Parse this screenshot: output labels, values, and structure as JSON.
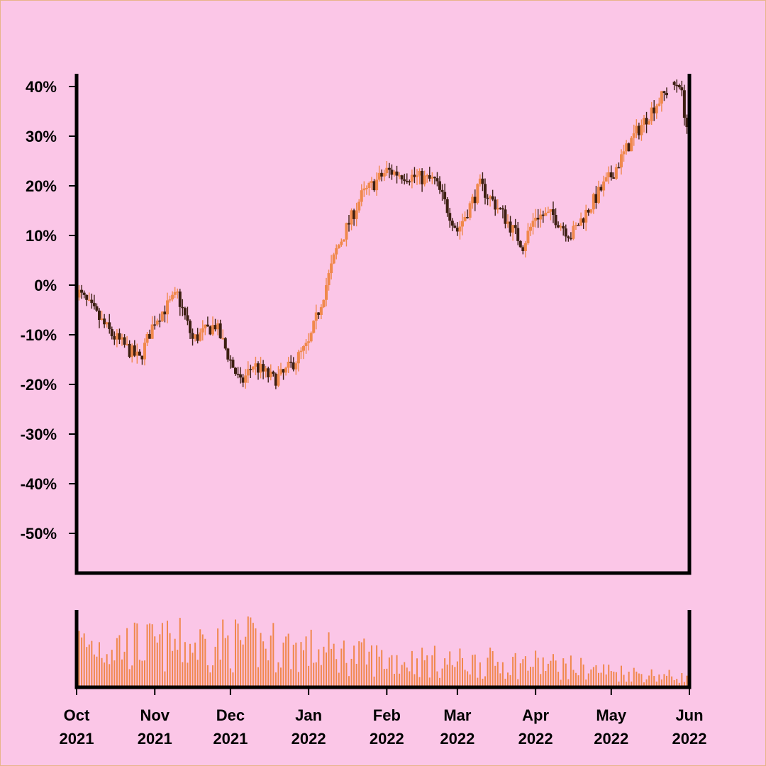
{
  "colors": {
    "background": "#fbc6e7",
    "up": "#f0884c",
    "down": "#3d1f12",
    "volume": "#f0884c",
    "axis": "#000000"
  },
  "chart_data": {
    "type": "ohlc",
    "title": "",
    "xlabel": "",
    "ylabel": "",
    "grid": false,
    "legend": "none",
    "price_panel": {
      "ylim": [
        -0.58,
        0.42
      ],
      "y_ticks": [
        0.4,
        0.3,
        0.2,
        0.1,
        0.0,
        -0.1,
        -0.2,
        -0.3,
        -0.4,
        -0.5
      ],
      "y_tick_labels": [
        "40%",
        "30%",
        "20%",
        "10%",
        "0%",
        "-10%",
        "-20%",
        "-30%",
        "-40%",
        "-50%"
      ],
      "series": {
        "name": "",
        "dates": [
          "2021-10-01",
          "2021-10-15",
          "2021-10-26",
          "2021-11-01",
          "2021-11-10",
          "2021-11-16",
          "2021-11-25",
          "2021-12-05",
          "2021-12-10",
          "2021-12-18",
          "2021-12-22",
          "2022-01-01",
          "2022-01-12",
          "2022-01-22",
          "2022-02-01",
          "2022-02-10",
          "2022-02-20",
          "2022-03-01",
          "2022-03-10",
          "2022-03-18",
          "2022-03-27",
          "2022-04-01",
          "2022-04-08",
          "2022-04-15",
          "2022-04-28",
          "2022-05-01",
          "2022-05-10",
          "2022-05-18",
          "2022-05-23",
          "2022-05-28",
          "2022-05-31"
        ],
        "close": [
          -0.01,
          -0.1,
          -0.15,
          -0.07,
          -0.02,
          -0.11,
          -0.08,
          -0.2,
          -0.16,
          -0.19,
          -0.18,
          -0.12,
          0.07,
          0.18,
          0.23,
          0.22,
          0.21,
          0.11,
          0.2,
          0.15,
          0.08,
          0.14,
          0.14,
          0.1,
          0.2,
          0.22,
          0.3,
          0.36,
          0.39,
          0.41,
          0.32
        ],
        "gap_after_index": 28
      }
    },
    "volume_panel": {
      "ylim": [
        0,
        1
      ],
      "profile_dates": [
        "2021-10-01",
        "2021-11-01",
        "2021-12-01",
        "2021-12-15",
        "2022-01-01",
        "2022-02-01",
        "2022-03-01",
        "2022-04-01",
        "2022-05-01",
        "2022-05-31"
      ],
      "profile_levels": [
        0.7,
        0.68,
        0.72,
        0.7,
        0.6,
        0.45,
        0.4,
        0.38,
        0.25,
        0.15
      ]
    },
    "x_range": [
      "2021-10-01",
      "2022-06-01"
    ],
    "x_tick_dates": [
      "2021-10-01",
      "2021-11-01",
      "2021-12-01",
      "2022-01-01",
      "2022-02-01",
      "2022-03-01",
      "2022-04-01",
      "2022-05-01",
      "2022-06-01"
    ],
    "x_tick_labels": [
      {
        "month": "Oct",
        "year": "2021"
      },
      {
        "month": "Nov",
        "year": "2021"
      },
      {
        "month": "Dec",
        "year": "2021"
      },
      {
        "month": "Jan",
        "year": "2022"
      },
      {
        "month": "Feb",
        "year": "2022"
      },
      {
        "month": "Mar",
        "year": "2022"
      },
      {
        "month": "Apr",
        "year": "2022"
      },
      {
        "month": "May",
        "year": "2022"
      },
      {
        "month": "Jun",
        "year": "2022"
      }
    ]
  }
}
